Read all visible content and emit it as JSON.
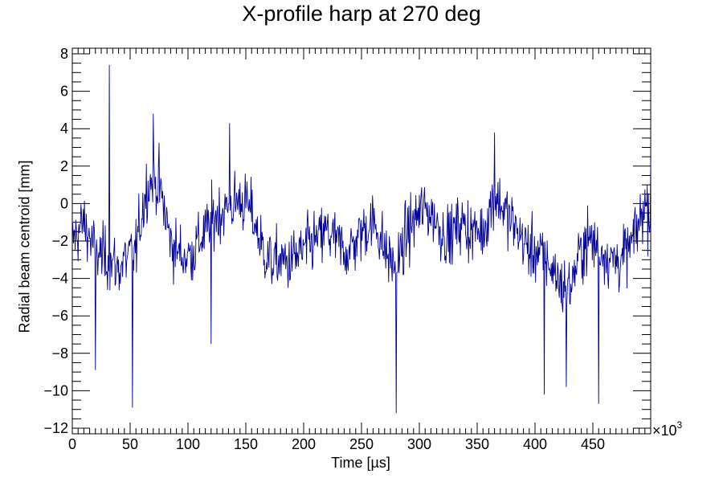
{
  "chart_data": {
    "type": "line",
    "title": "X-profile harp at 270 deg",
    "xlabel": "Time [µs]",
    "ylabel": "Radial beam centroid [mm]",
    "x_multiplier_base": "×10",
    "x_multiplier_exp": "3",
    "x_unit_scale": 1000,
    "xlim": [
      0,
      500
    ],
    "ylim": [
      -12.3,
      8.3
    ],
    "x_ticks": [
      0,
      50,
      100,
      150,
      200,
      250,
      300,
      350,
      400,
      450
    ],
    "x_tick_labels": [
      "0",
      "50",
      "100",
      "150",
      "200",
      "250",
      "300",
      "350",
      "400",
      "450"
    ],
    "y_ticks": [
      -12,
      -10,
      -8,
      -6,
      -4,
      -2,
      0,
      2,
      4,
      6,
      8
    ],
    "y_tick_labels": [
      "−12",
      "−10",
      "−8",
      "−6",
      "−4",
      "−2",
      "0",
      "2",
      "4",
      "6",
      "8"
    ],
    "grid": false,
    "series": [
      {
        "color": "#000099",
        "x": [
          0,
          5,
          10,
          15,
          20,
          25,
          30,
          35,
          40,
          45,
          50,
          55,
          60,
          65,
          70,
          75,
          80,
          85,
          90,
          95,
          100,
          105,
          110,
          115,
          120,
          125,
          130,
          135,
          140,
          145,
          150,
          155,
          160,
          165,
          170,
          175,
          180,
          185,
          190,
          195,
          200,
          205,
          210,
          215,
          220,
          225,
          230,
          235,
          240,
          245,
          250,
          255,
          260,
          265,
          270,
          275,
          280,
          285,
          290,
          295,
          300,
          305,
          310,
          315,
          320,
          325,
          330,
          335,
          340,
          345,
          350,
          355,
          360,
          365,
          370,
          375,
          380,
          385,
          390,
          395,
          400,
          405,
          410,
          415,
          420,
          425,
          430,
          435,
          440,
          445,
          450,
          455,
          460,
          465,
          470,
          475,
          480,
          485,
          490,
          495,
          500
        ],
        "y": [
          -2.0,
          -1.5,
          -1.0,
          -1.8,
          -2.5,
          -2.8,
          -3.0,
          -3.2,
          -3.5,
          -3.0,
          -2.8,
          -2.5,
          -0.5,
          1.0,
          1.2,
          1.0,
          -0.5,
          -2.0,
          -2.5,
          -2.8,
          -2.8,
          -2.5,
          -2.0,
          -1.5,
          -1.0,
          -0.6,
          -0.4,
          -0.3,
          0.0,
          0.2,
          0.0,
          -0.5,
          -1.5,
          -2.5,
          -3.0,
          -3.2,
          -3.0,
          -3.2,
          -3.0,
          -2.8,
          -2.5,
          -2.2,
          -2.0,
          -1.8,
          -1.5,
          -1.8,
          -2.2,
          -2.5,
          -2.5,
          -2.0,
          -1.5,
          -1.2,
          -1.0,
          -1.5,
          -2.5,
          -3.0,
          -3.5,
          -2.5,
          -1.5,
          -1.0,
          -0.5,
          -0.3,
          -0.5,
          -1.0,
          -1.5,
          -1.8,
          -1.5,
          -1.0,
          -1.2,
          -1.5,
          -1.5,
          -1.5,
          -0.5,
          0.5,
          0.0,
          -0.5,
          -1.0,
          -1.5,
          -2.0,
          -2.5,
          -2.5,
          -2.8,
          -3.0,
          -3.5,
          -4.0,
          -4.5,
          -4.5,
          -3.5,
          -2.5,
          -2.0,
          -2.0,
          -2.5,
          -2.5,
          -3.0,
          -3.0,
          -3.0,
          -2.5,
          -2.0,
          -1.0,
          0.0,
          -0.5
        ],
        "spikes": [
          [
            32,
            7.4
          ],
          [
            52,
            -10.9
          ],
          [
            20,
            -8.9
          ],
          [
            136,
            4.3
          ],
          [
            280,
            -11.2
          ],
          [
            365,
            3.8
          ],
          [
            408,
            -10.2
          ],
          [
            455,
            -10.7
          ],
          [
            120,
            -7.5
          ],
          [
            70,
            4.8
          ],
          [
            427,
            -9.8
          ],
          [
            500,
            2.3
          ]
        ]
      }
    ]
  }
}
